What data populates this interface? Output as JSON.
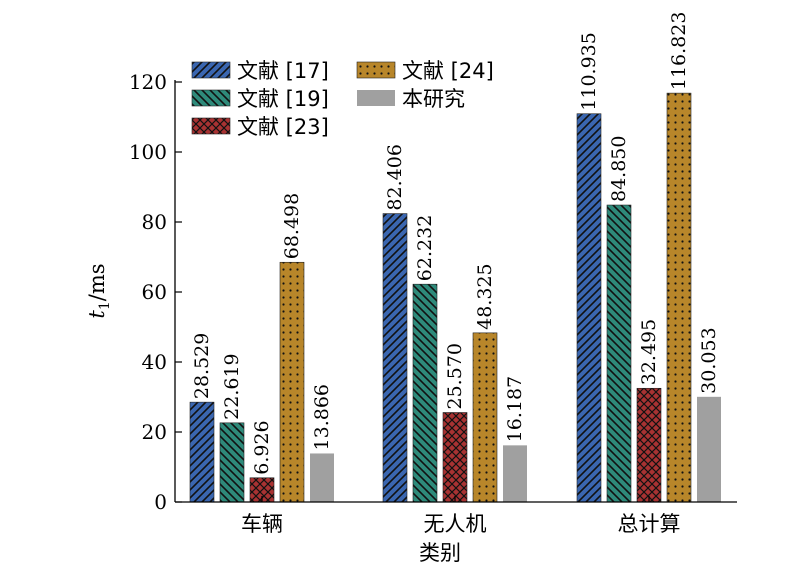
{
  "chart_data": {
    "type": "bar",
    "categories": [
      "车辆",
      "无人机",
      "总计算"
    ],
    "series": [
      {
        "name": "文献 [17]",
        "values": [
          28.529,
          82.406,
          110.935
        ],
        "color": "#3a66b0",
        "pattern": "diagonal-up"
      },
      {
        "name": "文献 [19]",
        "values": [
          22.619,
          62.232,
          84.85
        ],
        "color": "#2e8a7a",
        "pattern": "diagonal-down"
      },
      {
        "name": "文献 [23]",
        "values": [
          6.926,
          25.57,
          32.495
        ],
        "color": "#a83232",
        "pattern": "crosshatch"
      },
      {
        "name": "文献 [24]",
        "values": [
          68.498,
          48.325,
          116.823
        ],
        "color": "#b8862a",
        "pattern": "dots"
      },
      {
        "name": "本研究",
        "values": [
          13.866,
          16.187,
          30.053
        ],
        "color": "#a0a0a0",
        "pattern": "solid"
      }
    ],
    "value_labels": [
      [
        "28.529",
        "82.406",
        "110.935"
      ],
      [
        "22.619",
        "62.232",
        "84.850"
      ],
      [
        "6.926",
        "25.570",
        "32.495"
      ],
      [
        "68.498",
        "48.325",
        "116.823"
      ],
      [
        "13.866",
        "16.187",
        "30.053"
      ]
    ],
    "xlabel": "类别",
    "ylabel_italic": "t",
    "ylabel_sub": "1",
    "ylabel_rest": "/ms",
    "ylim": [
      0,
      120
    ],
    "yticks": [
      0,
      20,
      40,
      60,
      80,
      100,
      120
    ],
    "grid": false,
    "legend_position": "top-left"
  }
}
